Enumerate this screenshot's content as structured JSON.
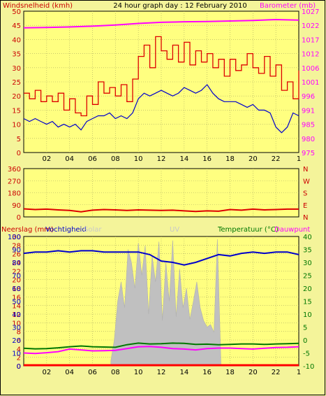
{
  "colors": {
    "background": "#f4f49a",
    "plot_bg": "#ffff80",
    "grid": "#a8a860",
    "wind_avg": "#0000cc",
    "wind_gust": "#dd0000",
    "barometer": "#ff00ff",
    "direction": "#dd0000",
    "humidity": "#0000cc",
    "temperature": "#007700",
    "dewpoint": "#ff00ff",
    "rain": "#ff0000",
    "uv": "#ffffff",
    "solar": "#c0c0c0",
    "left_axis": "#cc0000",
    "green_axis": "#007700",
    "nesw": "#cc0000"
  },
  "chart_data": [
    {
      "id": "wind-barometer",
      "type": "line",
      "title": "24 hour graph day : 12 February 2010",
      "ylabel_left": "Windsnelheid (kmh)",
      "ylabel_right": "Barometer (mb)",
      "ylim_left": [
        0,
        50
      ],
      "yticks_left": [
        "0",
        "5",
        "10",
        "15",
        "20",
        "25",
        "30",
        "35",
        "40",
        "45",
        "50"
      ],
      "ylim_right": [
        975,
        1027
      ],
      "yticks_right": [
        "975",
        "980",
        "985",
        "991",
        "996",
        "1001",
        "1006",
        "1012",
        "1017",
        "1022",
        "1027"
      ],
      "xlim": [
        0,
        24
      ],
      "xticks": [
        "02",
        "04",
        "06",
        "08",
        "10",
        "12",
        "14",
        "16",
        "18",
        "20",
        "22",
        "1"
      ],
      "grid": true,
      "series": [
        {
          "key": "gust",
          "axis": "left",
          "x": [
            0,
            0.5,
            1,
            1.5,
            2,
            2.5,
            3,
            3.5,
            4,
            4.5,
            5,
            5.5,
            6,
            6.5,
            7,
            7.5,
            8,
            8.5,
            9,
            9.5,
            10,
            10.5,
            11,
            11.5,
            12,
            12.5,
            13,
            13.5,
            14,
            14.5,
            15,
            15.5,
            16,
            16.5,
            17,
            17.5,
            18,
            18.5,
            19,
            19.5,
            20,
            20.5,
            21,
            21.5,
            22,
            22.5,
            23,
            23.5,
            24
          ],
          "values": [
            21,
            19,
            22,
            18,
            20,
            18,
            21,
            15,
            19,
            14,
            13,
            20,
            17,
            25,
            21,
            23,
            20,
            24,
            18,
            26,
            34,
            38,
            30,
            41,
            36,
            33,
            38,
            32,
            39,
            31,
            36,
            32,
            35,
            30,
            33,
            27,
            33,
            29,
            31,
            35,
            30,
            28,
            34,
            27,
            31,
            22,
            25,
            19,
            29
          ]
        },
        {
          "key": "average",
          "axis": "left",
          "x": [
            0,
            0.5,
            1,
            1.5,
            2,
            2.5,
            3,
            3.5,
            4,
            4.5,
            5,
            5.5,
            6,
            6.5,
            7,
            7.5,
            8,
            8.5,
            9,
            9.5,
            10,
            10.5,
            11,
            11.5,
            12,
            12.5,
            13,
            13.5,
            14,
            14.5,
            15,
            15.5,
            16,
            16.5,
            17,
            17.5,
            18,
            18.5,
            19,
            19.5,
            20,
            20.5,
            21,
            21.5,
            22,
            22.5,
            23,
            23.5,
            24
          ],
          "values": [
            12,
            11,
            12,
            11,
            10,
            11,
            9,
            10,
            9,
            10,
            8,
            11,
            12,
            13,
            13,
            14,
            12,
            13,
            12,
            14,
            19,
            21,
            20,
            21,
            22,
            21,
            20,
            21,
            23,
            22,
            21,
            22,
            24,
            21,
            19,
            18,
            18,
            18,
            17,
            16,
            17,
            15,
            15,
            14,
            9,
            7,
            9,
            14,
            13
          ]
        },
        {
          "key": "barometer",
          "axis": "right",
          "x": [
            0,
            2,
            4,
            6,
            8,
            10,
            12,
            14,
            16,
            18,
            20,
            22,
            24
          ],
          "values": [
            1020.9,
            1021.0,
            1021.2,
            1021.5,
            1021.9,
            1022.5,
            1022.9,
            1023.1,
            1023.2,
            1023.4,
            1023.6,
            1023.9,
            1023.7
          ]
        }
      ]
    },
    {
      "id": "wind-direction",
      "type": "line",
      "ylim": [
        0,
        360
      ],
      "yticks_left": [
        "0",
        "90",
        "180",
        "270",
        "360"
      ],
      "yticks_right": [
        "N",
        "E",
        "S",
        "W",
        "N"
      ],
      "xlim": [
        0,
        24
      ],
      "grid": true,
      "series": [
        {
          "key": "direction",
          "x": [
            0,
            1,
            2,
            3,
            4,
            5,
            6,
            7,
            8,
            9,
            10,
            11,
            12,
            13,
            14,
            15,
            16,
            17,
            18,
            19,
            20,
            21,
            22,
            23,
            24
          ],
          "values": [
            60,
            55,
            58,
            52,
            48,
            38,
            50,
            55,
            52,
            48,
            52,
            50,
            48,
            50,
            45,
            40,
            45,
            42,
            55,
            50,
            58,
            52,
            55,
            58,
            58
          ]
        }
      ]
    },
    {
      "id": "rain-humidity-temperature",
      "type": "line",
      "legend": [
        "Neerslag (mm)",
        "Vochtigheid",
        "Solar",
        "UV",
        "Temperatuur (°C)",
        "Dauwpunt"
      ],
      "ylim_left": [
        0,
        30
      ],
      "yticks_left": [
        "0",
        "2",
        "4",
        "6",
        "8",
        "10",
        "12",
        "14",
        "16",
        "18",
        "20",
        "22",
        "24",
        "26",
        "28",
        "30"
      ],
      "yticks_left_pct": [
        "0",
        "10",
        "20",
        "30",
        "40",
        "50",
        "60",
        "70",
        "80",
        "90",
        "100"
      ],
      "ylim_right": [
        -10,
        40
      ],
      "yticks_right": [
        "-10",
        "-5",
        "0",
        "5",
        "10",
        "15",
        "20",
        "25",
        "30",
        "35",
        "40"
      ],
      "xlim": [
        0,
        24
      ],
      "xticks": [
        "02",
        "04",
        "06",
        "08",
        "10",
        "12",
        "14",
        "16",
        "18",
        "20",
        "22",
        "1"
      ],
      "grid": true,
      "series": [
        {
          "key": "humidity",
          "x": [
            0,
            1,
            2,
            3,
            4,
            5,
            6,
            7,
            8,
            9,
            10,
            11,
            12,
            13,
            14,
            15,
            16,
            17,
            18,
            19,
            20,
            21,
            22,
            23,
            24
          ],
          "values": [
            87,
            88,
            88,
            89,
            88,
            89,
            89,
            88,
            88,
            88,
            88,
            86,
            81,
            80,
            78,
            80,
            83,
            86,
            85,
            87,
            88,
            87,
            88,
            88,
            86
          ]
        },
        {
          "key": "temperature",
          "x": [
            0,
            1,
            2,
            3,
            4,
            5,
            6,
            7,
            8,
            9,
            10,
            11,
            12,
            13,
            14,
            15,
            16,
            17,
            18,
            19,
            20,
            21,
            22,
            23,
            24
          ],
          "values": [
            -3.2,
            -3.4,
            -3.3,
            -3.0,
            -2.6,
            -2.3,
            -2.6,
            -2.7,
            -2.8,
            -1.8,
            -1.2,
            -1.5,
            -1.4,
            -1.2,
            -1.3,
            -1.7,
            -1.6,
            -1.8,
            -1.7,
            -1.5,
            -1.5,
            -1.7,
            -1.5,
            -1.4,
            -1.3
          ]
        },
        {
          "key": "dewpoint",
          "x": [
            0,
            1,
            2,
            3,
            4,
            5,
            6,
            7,
            8,
            9,
            10,
            11,
            12,
            13,
            14,
            15,
            16,
            17,
            18,
            19,
            20,
            21,
            22,
            23,
            24
          ],
          "values": [
            -5.0,
            -5.2,
            -4.9,
            -4.5,
            -3.5,
            -3.8,
            -4.2,
            -4.1,
            -4.0,
            -3.3,
            -2.6,
            -2.5,
            -2.8,
            -3.3,
            -3.5,
            -3.8,
            -3.3,
            -3.1,
            -3.1,
            -3.3,
            -3.5,
            -3.2,
            -2.9,
            -2.8,
            -2.6
          ]
        },
        {
          "key": "rain",
          "x": [
            0,
            24
          ],
          "values": [
            0,
            0
          ]
        },
        {
          "key": "solar",
          "x": [
            7.6,
            7.9,
            8.2,
            8.5,
            8.8,
            9.1,
            9.4,
            9.7,
            10.0,
            10.3,
            10.6,
            10.9,
            11.2,
            11.5,
            11.8,
            12.1,
            12.4,
            12.7,
            13.0,
            13.3,
            13.6,
            13.9,
            14.2,
            14.5,
            14.8,
            15.1,
            15.4,
            15.7,
            16.0,
            16.3,
            16.6,
            16.9,
            17.2
          ],
          "values": [
            0.4,
            2.0,
            5.0,
            6.5,
            4.5,
            9.0,
            8.0,
            6.0,
            9.5,
            7.0,
            9.3,
            4.0,
            8.5,
            6.5,
            9.6,
            3.5,
            8.0,
            5.0,
            9.7,
            3.8,
            7.5,
            4.5,
            6.0,
            3.6,
            5.0,
            6.5,
            4.5,
            3.5,
            3.0,
            3.2,
            2.6,
            9.8,
            0.4
          ]
        }
      ]
    }
  ]
}
